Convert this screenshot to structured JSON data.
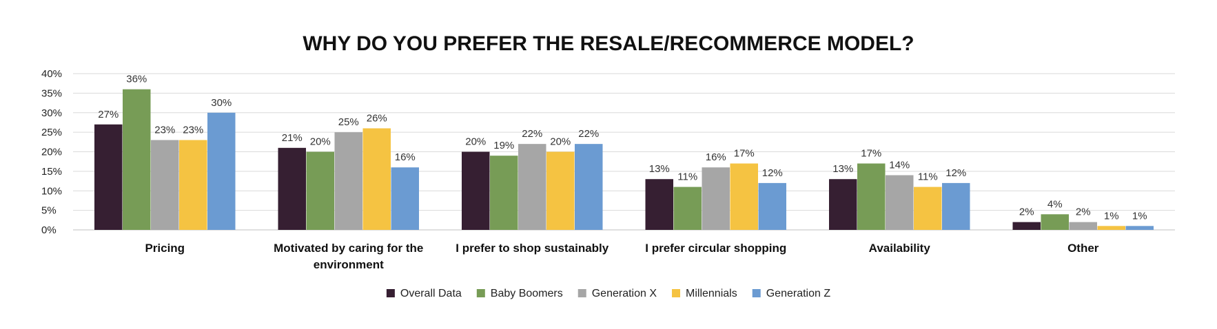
{
  "chart_data": {
    "type": "bar",
    "title": "WHY DO YOU PREFER THE RESALE/RECOMMERCE MODEL?",
    "categories": [
      [
        "Pricing"
      ],
      [
        "Motivated by caring for the",
        "environment"
      ],
      [
        "I prefer to shop sustainably"
      ],
      [
        "I prefer circular shopping"
      ],
      [
        "Availability"
      ],
      [
        "Other"
      ]
    ],
    "series": [
      {
        "name": "Overall Data",
        "color": "#361f32",
        "values": [
          27,
          21,
          20,
          13,
          13,
          2
        ]
      },
      {
        "name": "Baby Boomers",
        "color": "#779c56",
        "values": [
          36,
          20,
          19,
          11,
          17,
          4
        ]
      },
      {
        "name": "Generation X",
        "color": "#a6a6a6",
        "values": [
          23,
          25,
          22,
          16,
          14,
          2
        ]
      },
      {
        "name": "Millennials",
        "color": "#f5c342",
        "values": [
          23,
          26,
          20,
          17,
          11,
          1
        ]
      },
      {
        "name": "Generation Z",
        "color": "#6b9bd2",
        "values": [
          30,
          16,
          22,
          12,
          12,
          1
        ]
      }
    ],
    "y_ticks": [
      "0%",
      "5%",
      "10%",
      "15%",
      "20%",
      "25%",
      "30%",
      "35%",
      "40%"
    ],
    "ylim": [
      0,
      40
    ],
    "value_suffix": "%",
    "grid": true,
    "legend_position": "bottom-center"
  }
}
